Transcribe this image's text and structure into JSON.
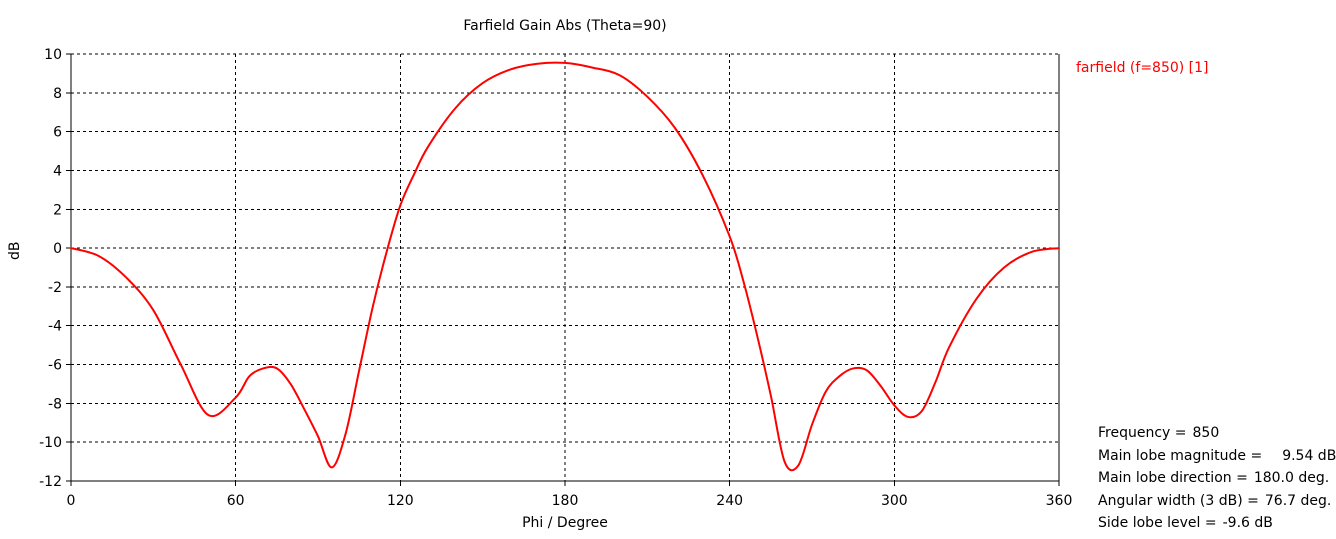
{
  "chart_data": {
    "type": "line",
    "title": "Farfield Gain Abs (Theta=90)",
    "xlabel": "Phi / Degree",
    "ylabel": "dB",
    "xlim": [
      0,
      360
    ],
    "ylim": [
      -12,
      10
    ],
    "xticks": [
      0,
      60,
      120,
      180,
      240,
      300,
      360
    ],
    "yticks": [
      -12,
      -10,
      -8,
      -6,
      -4,
      -2,
      0,
      2,
      4,
      6,
      8,
      10
    ],
    "grid": true,
    "series": [
      {
        "name": "farfield (f=850) [1]",
        "color": "#ff0000",
        "x": [
          0,
          10,
          20,
          30,
          40,
          50,
          60,
          65,
          70,
          75,
          80,
          85,
          90,
          95,
          100,
          105,
          110,
          115,
          120,
          125,
          130,
          140,
          150,
          160,
          170,
          180,
          190,
          200,
          210,
          220,
          230,
          240,
          245,
          250,
          255,
          260,
          265,
          270,
          275,
          280,
          285,
          290,
          295,
          300,
          305,
          310,
          315,
          320,
          330,
          340,
          350,
          360
        ],
        "values": [
          0.0,
          -0.4,
          -1.5,
          -3.2,
          -6.0,
          -8.6,
          -7.7,
          -6.6,
          -6.2,
          -6.2,
          -7.0,
          -8.3,
          -9.7,
          -11.3,
          -9.6,
          -6.3,
          -3.0,
          -0.2,
          2.2,
          3.8,
          5.2,
          7.2,
          8.5,
          9.2,
          9.5,
          9.54,
          9.3,
          8.9,
          7.8,
          6.2,
          3.8,
          0.6,
          -1.7,
          -4.5,
          -7.6,
          -11.0,
          -11.2,
          -9.1,
          -7.4,
          -6.6,
          -6.2,
          -6.3,
          -7.1,
          -8.1,
          -8.7,
          -8.4,
          -6.9,
          -5.1,
          -2.6,
          -1.0,
          -0.2,
          0.0
        ]
      }
    ],
    "annotations": [
      {
        "label": "Frequency =",
        "value": "850"
      },
      {
        "label": "Main lobe magnitude =",
        "value": "9.54 dB"
      },
      {
        "label": "Main lobe direction =",
        "value": "180.0 deg."
      },
      {
        "label": "Angular width (3 dB) =",
        "value": "76.7 deg."
      },
      {
        "label": "Side lobe level =",
        "value": "-9.6 dB"
      }
    ]
  }
}
